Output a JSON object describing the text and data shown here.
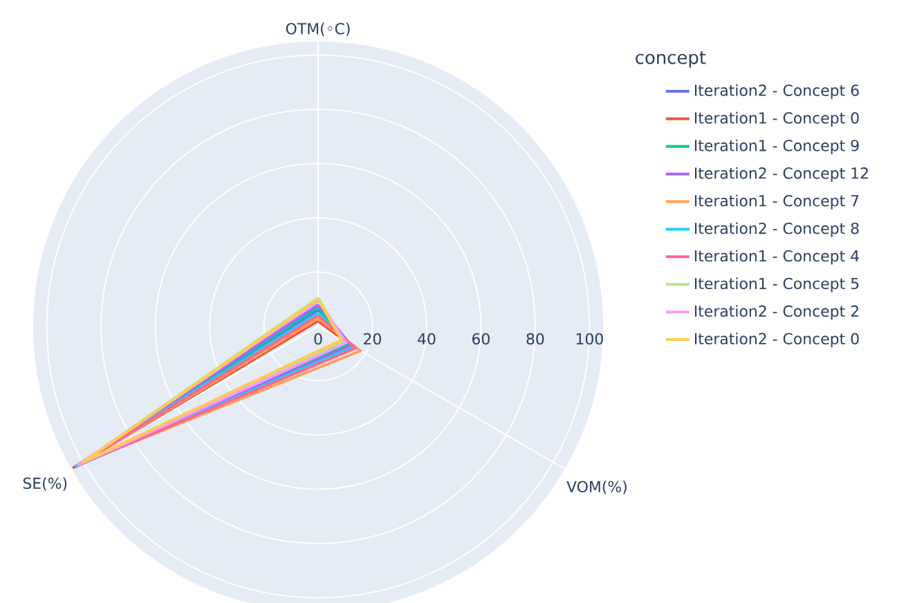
{
  "chart_data": {
    "type": "radar",
    "legend_title": "concept",
    "categories": [
      "OTM(◦C)",
      "VOM(%)",
      "SE(%)"
    ],
    "ylim": [
      0,
      105
    ],
    "yticks": [
      0,
      20,
      40,
      60,
      80,
      100
    ],
    "grid": true,
    "legend": "right",
    "series": [
      {
        "name": "Iteration2 - Concept 6",
        "color": "#636efa",
        "values": [
          6,
          14,
          102
        ]
      },
      {
        "name": "Iteration1 - Concept 0",
        "color": "#ef553b",
        "values": [
          2,
          14,
          104
        ]
      },
      {
        "name": "Iteration1 - Concept 9",
        "color": "#00cc96",
        "values": [
          7,
          13,
          102
        ]
      },
      {
        "name": "Iteration2 - Concept 12",
        "color": "#ab63fa",
        "values": [
          8,
          14,
          102
        ]
      },
      {
        "name": "Iteration1 - Concept 7",
        "color": "#ffa15a",
        "values": [
          3,
          18,
          101
        ]
      },
      {
        "name": "Iteration2 - Concept 8",
        "color": "#19d3f3",
        "values": [
          5,
          15,
          103
        ]
      },
      {
        "name": "Iteration1 - Concept 4",
        "color": "#ff6692",
        "values": [
          4,
          16,
          102
        ]
      },
      {
        "name": "Iteration1 - Concept 5",
        "color": "#b6e880",
        "values": [
          10.5,
          11,
          101
        ]
      },
      {
        "name": "Iteration2 - Concept 2",
        "color": "#ff97ff",
        "values": [
          9.5,
          12,
          102
        ]
      },
      {
        "name": "Iteration2 - Concept 0",
        "color": "#fecb52",
        "values": [
          10,
          10,
          100
        ]
      }
    ]
  }
}
